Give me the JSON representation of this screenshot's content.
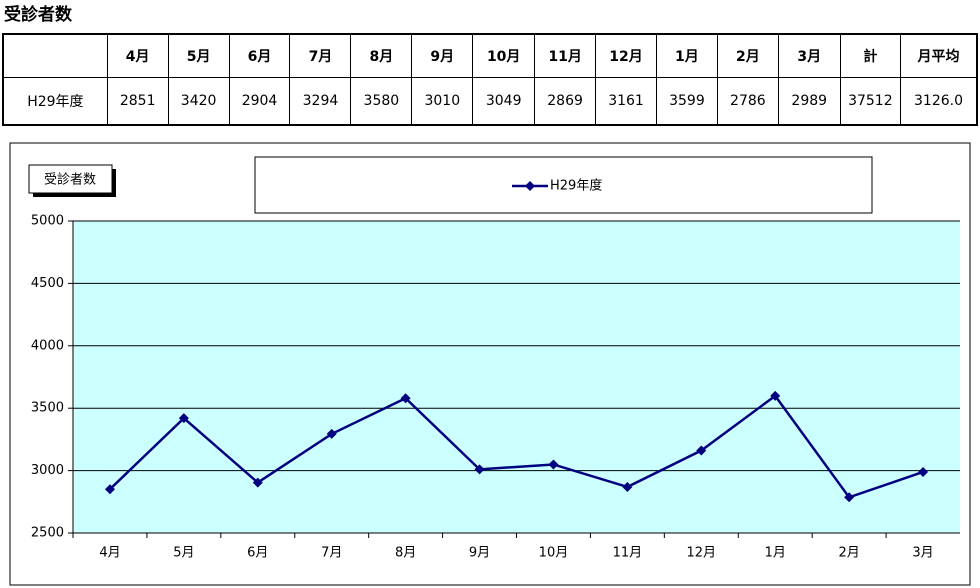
{
  "title": "受診者数",
  "table": {
    "header": [
      "4月",
      "5月",
      "6月",
      "7月",
      "8月",
      "9月",
      "10月",
      "11月",
      "12月",
      "1月",
      "2月",
      "3月",
      "計",
      "月平均"
    ],
    "rows": [
      [
        "H29年度",
        2851,
        3420,
        2904,
        3294,
        3580,
        3010,
        3049,
        2869,
        3161,
        3599,
        2786,
        2989,
        37512,
        "3126.0"
      ]
    ]
  },
  "chart_data": {
    "type": "line",
    "title": "受診者数",
    "categories": [
      "4月",
      "5月",
      "6月",
      "7月",
      "8月",
      "9月",
      "10月",
      "11月",
      "12月",
      "1月",
      "2月",
      "3月"
    ],
    "series": [
      {
        "name": "H29年度",
        "color": "#000080",
        "values": [
          2851,
          3420,
          2904,
          3294,
          3580,
          3010,
          3049,
          2869,
          3161,
          3599,
          2786,
          2989
        ]
      }
    ],
    "ylim": [
      2500,
      5000
    ],
    "yticks": [
      2500,
      3000,
      3500,
      4000,
      4500,
      5000
    ],
    "grid": true,
    "background": "#ccffff",
    "legend": "top"
  }
}
